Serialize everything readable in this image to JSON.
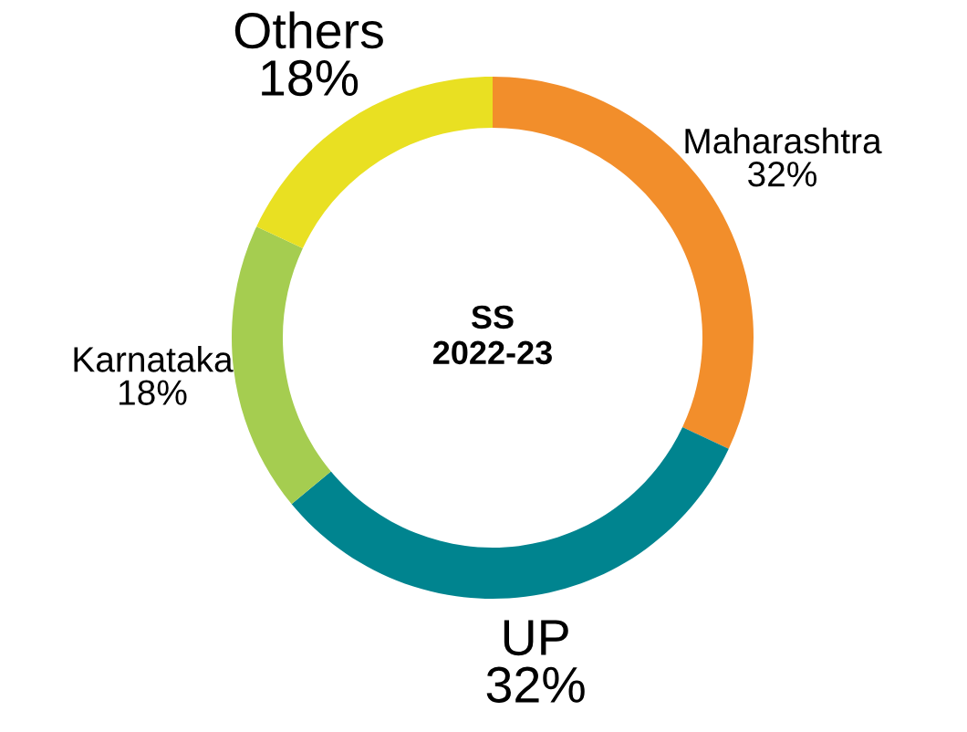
{
  "chart_data": {
    "type": "donut",
    "title": "SS\n2022-23",
    "categories": [
      "Maharashtra",
      "UP",
      "Karnataka",
      "Others"
    ],
    "values": [
      32,
      32,
      18,
      18
    ],
    "value_labels": [
      "32%",
      "32%",
      "18%",
      "18%"
    ],
    "colors": [
      "#f28e2b",
      "#00848f",
      "#a5cd50",
      "#e9e022"
    ],
    "legend": false
  }
}
